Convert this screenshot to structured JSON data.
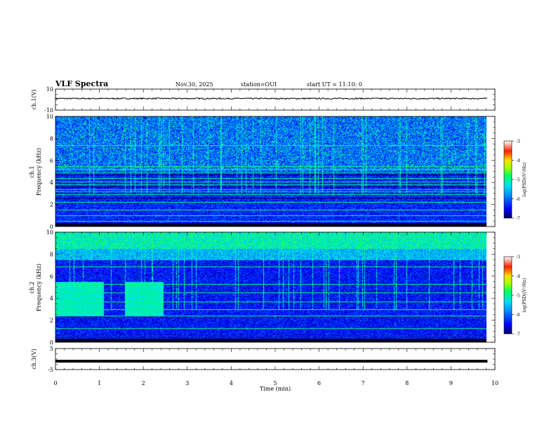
{
  "header": {
    "title": "VLF Spectra",
    "date": "Nov.30, 2025",
    "station": "station=OUI",
    "start": "start UT = 11:10: 0"
  },
  "chart_data": [
    {
      "type": "line",
      "name": "ch1-waveform",
      "ylabel": "ch.1(V)",
      "ylim": [
        -10,
        10
      ],
      "yticks": [
        "10",
        "-10"
      ],
      "baseline_volts": 1.0,
      "description_values": "noisy near-constant trace around +1 V"
    },
    {
      "type": "heatmap",
      "name": "ch1-spectrogram",
      "ylabel_top": "ch.1",
      "ylabel": "Frequency (kHz)",
      "ylim": [
        0,
        10
      ],
      "yticks": [
        "0",
        "2",
        "4",
        "6",
        "8",
        "10"
      ],
      "xlim": [
        0,
        10
      ],
      "colorbar": {
        "label": "log(PSD)(V²/Hz)",
        "range": [
          -7,
          -3
        ],
        "ticks": [
          "-3",
          "-4",
          "-5",
          "-6",
          "-7"
        ]
      },
      "bright_bands_khz": [
        0.5,
        1.0,
        1.5,
        2.2,
        2.9,
        3.2,
        3.4,
        3.8,
        4.1,
        4.4,
        4.9,
        5.2,
        5.5,
        7.4
      ],
      "dark_gaps_khz": [
        4.7,
        2.6,
        3.6
      ]
    },
    {
      "type": "heatmap",
      "name": "ch2-spectrogram",
      "ylabel_top": "ch.2",
      "ylabel": "Frequency (kHz)",
      "ylim": [
        0,
        10
      ],
      "yticks": [
        "0",
        "2",
        "4",
        "6",
        "8",
        "10"
      ],
      "xlim": [
        0,
        10
      ],
      "colorbar": {
        "label": "log(PSD)(V²/Hz)",
        "range": [
          -7,
          -3
        ],
        "ticks": [
          "-3",
          "-4",
          "-5",
          "-6",
          "-7"
        ]
      },
      "bright_bands_khz": [
        1.3,
        2.4,
        3.0,
        3.7,
        4.5,
        5.3,
        6.9
      ],
      "green_blocks": [
        {
          "t0": 0.0,
          "t1": 1.12,
          "f0": 2.4,
          "f1": 5.5
        },
        {
          "t0": 1.6,
          "t1": 2.5,
          "f0": 2.4,
          "f1": 5.5
        }
      ]
    },
    {
      "type": "line",
      "name": "ch3-waveform",
      "ylabel": "ch.3(V)",
      "ylim": [
        -5,
        5
      ],
      "yticks": [
        "5",
        "-5"
      ],
      "baseline_volts": -1.0
    }
  ],
  "xaxis": {
    "label": "Time (min)",
    "range": [
      0,
      10
    ],
    "ticks": [
      "0",
      "1",
      "2",
      "3",
      "4",
      "5",
      "6",
      "7",
      "8",
      "9",
      "10"
    ],
    "data_end": 9.83
  }
}
